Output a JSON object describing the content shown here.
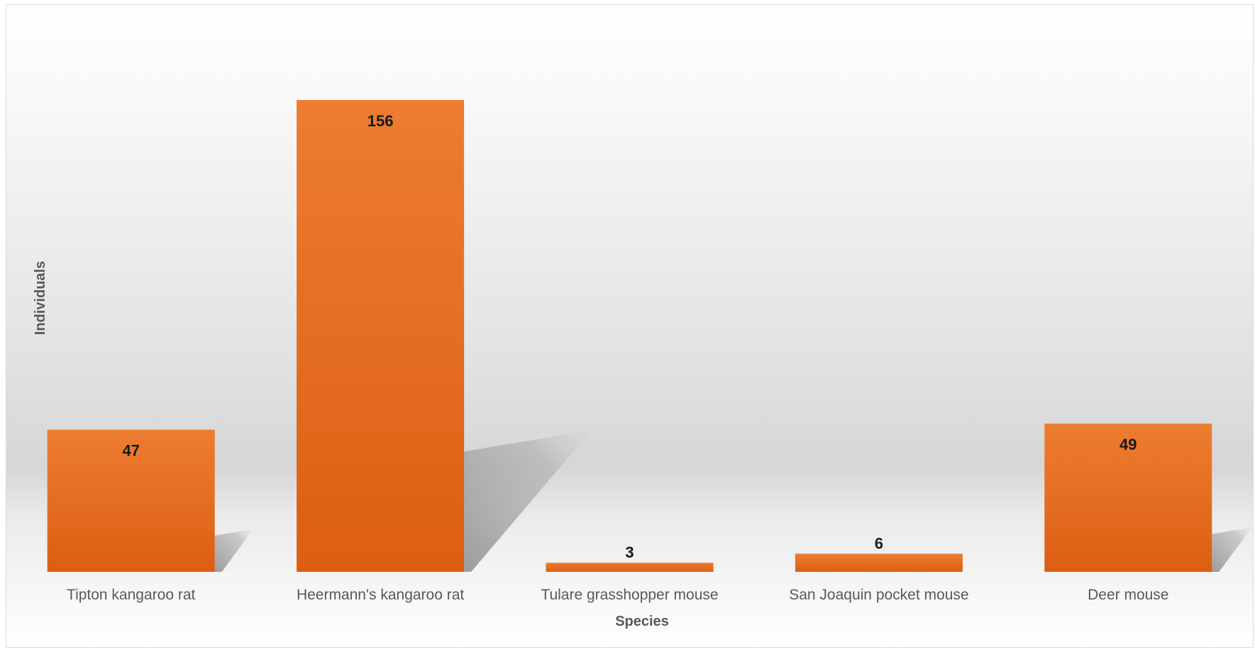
{
  "chart_data": {
    "type": "bar",
    "title": "",
    "xlabel": "Species",
    "ylabel": "Individuals",
    "categories": [
      "Tipton kangaroo rat",
      "Heermann's kangaroo rat",
      "Tulare grasshopper mouse",
      "San Joaquin pocket mouse",
      "Deer mouse"
    ],
    "values": [
      47,
      156,
      3,
      6,
      49
    ],
    "data_labels": [
      "47",
      "156",
      "3",
      "6",
      "49"
    ],
    "ylim": [
      0,
      175
    ],
    "grid": false,
    "legend": "none",
    "colors": {
      "bar_top": "#ED7D31",
      "bar_bottom": "#DC5E12",
      "shadow": "#9a9a9a",
      "background_top": "#ffffff",
      "background_mid": "#d9d9d9"
    }
  }
}
